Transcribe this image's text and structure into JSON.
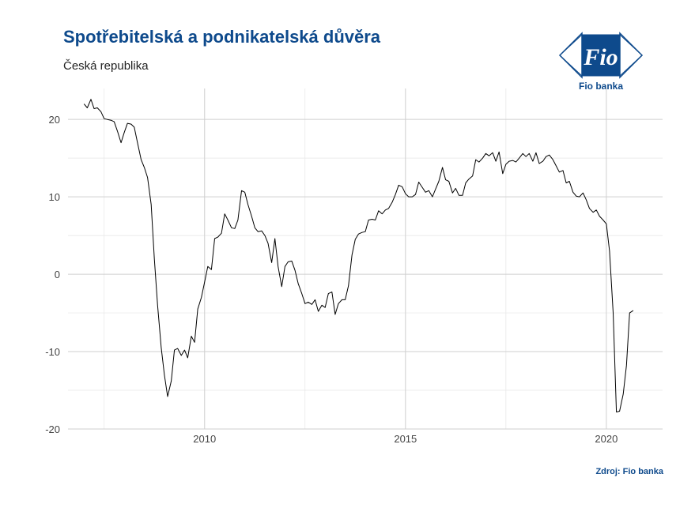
{
  "header": {
    "title": "Spotřebitelská a podnikatelská důvěra",
    "subtitle": "Česká republika"
  },
  "logo": {
    "mark": "Fio",
    "name": "Fio banka",
    "color": "#0e4a8c"
  },
  "footer": {
    "source": "Zdroj: Fio banka"
  },
  "chart_data": {
    "type": "line",
    "title": "Spotřebitelská a podnikatelská důvěra",
    "subtitle": "Česká republika",
    "xlabel": "",
    "ylabel": "",
    "xlim": [
      2006.6,
      2021.4
    ],
    "ylim": [
      -20,
      24
    ],
    "x_ticks": [
      2010,
      2015,
      2020
    ],
    "y_ticks": [
      -20,
      -10,
      0,
      10,
      20
    ],
    "grid": true,
    "line_color": "#000000",
    "series": [
      {
        "points": [
          [
            2007.0,
            22.0
          ],
          [
            2007.08,
            21.5
          ],
          [
            2007.17,
            22.6
          ],
          [
            2007.25,
            21.4
          ],
          [
            2007.33,
            21.5
          ],
          [
            2007.42,
            21.0
          ],
          [
            2007.5,
            20.1
          ],
          [
            2007.58,
            20.0
          ],
          [
            2007.67,
            19.9
          ],
          [
            2007.75,
            19.7
          ],
          [
            2007.83,
            18.5
          ],
          [
            2007.92,
            17.0
          ],
          [
            2008.0,
            18.3
          ],
          [
            2008.08,
            19.5
          ],
          [
            2008.17,
            19.4
          ],
          [
            2008.25,
            19.0
          ],
          [
            2008.33,
            17.0
          ],
          [
            2008.42,
            14.8
          ],
          [
            2008.5,
            13.8
          ],
          [
            2008.58,
            12.5
          ],
          [
            2008.67,
            9.0
          ],
          [
            2008.75,
            2.0
          ],
          [
            2008.83,
            -4.0
          ],
          [
            2008.92,
            -9.5
          ],
          [
            2009.0,
            -13.0
          ],
          [
            2009.08,
            -15.8
          ],
          [
            2009.17,
            -13.8
          ],
          [
            2009.25,
            -9.8
          ],
          [
            2009.33,
            -9.6
          ],
          [
            2009.42,
            -10.5
          ],
          [
            2009.5,
            -9.8
          ],
          [
            2009.58,
            -10.8
          ],
          [
            2009.67,
            -8.0
          ],
          [
            2009.75,
            -8.8
          ],
          [
            2009.83,
            -4.5
          ],
          [
            2009.92,
            -3.0
          ],
          [
            2010.0,
            -1.0
          ],
          [
            2010.08,
            1.0
          ],
          [
            2010.17,
            0.6
          ],
          [
            2010.25,
            4.6
          ],
          [
            2010.33,
            4.8
          ],
          [
            2010.42,
            5.3
          ],
          [
            2010.5,
            7.8
          ],
          [
            2010.58,
            7.0
          ],
          [
            2010.67,
            6.0
          ],
          [
            2010.75,
            5.9
          ],
          [
            2010.83,
            7.0
          ],
          [
            2010.92,
            10.8
          ],
          [
            2011.0,
            10.6
          ],
          [
            2011.08,
            9.0
          ],
          [
            2011.17,
            7.5
          ],
          [
            2011.25,
            6.0
          ],
          [
            2011.33,
            5.5
          ],
          [
            2011.42,
            5.6
          ],
          [
            2011.5,
            5.0
          ],
          [
            2011.58,
            4.0
          ],
          [
            2011.67,
            1.5
          ],
          [
            2011.75,
            4.6
          ],
          [
            2011.83,
            1.0
          ],
          [
            2011.92,
            -1.6
          ],
          [
            2012.0,
            1.0
          ],
          [
            2012.08,
            1.6
          ],
          [
            2012.17,
            1.7
          ],
          [
            2012.25,
            0.5
          ],
          [
            2012.33,
            -1.2
          ],
          [
            2012.42,
            -2.5
          ],
          [
            2012.5,
            -3.8
          ],
          [
            2012.58,
            -3.6
          ],
          [
            2012.67,
            -3.9
          ],
          [
            2012.75,
            -3.3
          ],
          [
            2012.83,
            -4.8
          ],
          [
            2012.92,
            -4.0
          ],
          [
            2013.0,
            -4.3
          ],
          [
            2013.08,
            -2.5
          ],
          [
            2013.17,
            -2.3
          ],
          [
            2013.25,
            -5.2
          ],
          [
            2013.33,
            -3.8
          ],
          [
            2013.42,
            -3.3
          ],
          [
            2013.5,
            -3.3
          ],
          [
            2013.58,
            -1.5
          ],
          [
            2013.67,
            2.5
          ],
          [
            2013.75,
            4.5
          ],
          [
            2013.83,
            5.2
          ],
          [
            2013.92,
            5.4
          ],
          [
            2014.0,
            5.5
          ],
          [
            2014.08,
            7.0
          ],
          [
            2014.17,
            7.1
          ],
          [
            2014.25,
            7.0
          ],
          [
            2014.33,
            8.2
          ],
          [
            2014.42,
            7.8
          ],
          [
            2014.5,
            8.3
          ],
          [
            2014.58,
            8.5
          ],
          [
            2014.67,
            9.3
          ],
          [
            2014.75,
            10.3
          ],
          [
            2014.83,
            11.5
          ],
          [
            2014.92,
            11.3
          ],
          [
            2015.0,
            10.4
          ],
          [
            2015.08,
            10.0
          ],
          [
            2015.17,
            10.0
          ],
          [
            2015.25,
            10.3
          ],
          [
            2015.33,
            11.9
          ],
          [
            2015.42,
            11.2
          ],
          [
            2015.5,
            10.6
          ],
          [
            2015.58,
            10.8
          ],
          [
            2015.67,
            10.0
          ],
          [
            2015.75,
            11.0
          ],
          [
            2015.83,
            12.0
          ],
          [
            2015.92,
            13.8
          ],
          [
            2016.0,
            12.2
          ],
          [
            2016.08,
            12.0
          ],
          [
            2016.17,
            10.5
          ],
          [
            2016.25,
            11.1
          ],
          [
            2016.33,
            10.2
          ],
          [
            2016.42,
            10.2
          ],
          [
            2016.5,
            11.8
          ],
          [
            2016.58,
            12.3
          ],
          [
            2016.67,
            12.7
          ],
          [
            2016.75,
            14.8
          ],
          [
            2016.83,
            14.5
          ],
          [
            2016.92,
            15.0
          ],
          [
            2017.0,
            15.6
          ],
          [
            2017.08,
            15.3
          ],
          [
            2017.17,
            15.7
          ],
          [
            2017.25,
            14.6
          ],
          [
            2017.33,
            15.8
          ],
          [
            2017.42,
            13.0
          ],
          [
            2017.5,
            14.2
          ],
          [
            2017.58,
            14.6
          ],
          [
            2017.67,
            14.7
          ],
          [
            2017.75,
            14.5
          ],
          [
            2017.83,
            15.0
          ],
          [
            2017.92,
            15.6
          ],
          [
            2018.0,
            15.2
          ],
          [
            2018.08,
            15.6
          ],
          [
            2018.17,
            14.6
          ],
          [
            2018.25,
            15.7
          ],
          [
            2018.33,
            14.3
          ],
          [
            2018.42,
            14.6
          ],
          [
            2018.5,
            15.2
          ],
          [
            2018.58,
            15.4
          ],
          [
            2018.67,
            14.8
          ],
          [
            2018.75,
            14.0
          ],
          [
            2018.83,
            13.2
          ],
          [
            2018.92,
            13.4
          ],
          [
            2019.0,
            11.8
          ],
          [
            2019.08,
            12.0
          ],
          [
            2019.17,
            10.6
          ],
          [
            2019.25,
            10.1
          ],
          [
            2019.33,
            10.0
          ],
          [
            2019.42,
            10.5
          ],
          [
            2019.5,
            9.6
          ],
          [
            2019.58,
            8.5
          ],
          [
            2019.67,
            8.0
          ],
          [
            2019.75,
            8.3
          ],
          [
            2019.83,
            7.5
          ],
          [
            2019.92,
            7.0
          ],
          [
            2020.0,
            6.5
          ],
          [
            2020.08,
            3.0
          ],
          [
            2020.17,
            -5.0
          ],
          [
            2020.25,
            -17.8
          ],
          [
            2020.33,
            -17.7
          ],
          [
            2020.42,
            -15.5
          ],
          [
            2020.5,
            -11.8
          ],
          [
            2020.58,
            -5.0
          ],
          [
            2020.67,
            -4.7
          ]
        ]
      }
    ]
  }
}
